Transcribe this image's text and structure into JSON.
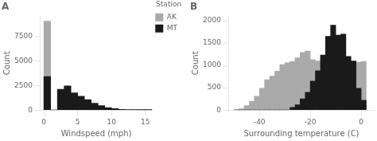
{
  "chart_data": [
    {
      "type": "histogram",
      "title": "A",
      "xlabel": "Windspeed (mph)",
      "ylabel": "Count",
      "bins": [
        0,
        1,
        2,
        3,
        4,
        5,
        6,
        7,
        8,
        9,
        10,
        11,
        12,
        13,
        14,
        15,
        16
      ],
      "series": [
        {
          "name": "AK",
          "color": "#aaaaaa",
          "values": [
            9000,
            0,
            0,
            0,
            0,
            0,
            0,
            0,
            0,
            0,
            0,
            0,
            0,
            0,
            0,
            0
          ]
        },
        {
          "name": "MT",
          "color": "#1a1a1a",
          "values": [
            3400,
            0,
            2100,
            2450,
            1750,
            1400,
            1050,
            700,
            450,
            250,
            150,
            80,
            50,
            30,
            10,
            5
          ]
        }
      ],
      "xlim": [
        -0.5,
        16
      ],
      "ylim": [
        0,
        9500
      ],
      "xticks": [
        0,
        5,
        10,
        15
      ],
      "yticks": [
        0,
        2500,
        5000,
        7500
      ],
      "grid": false,
      "legend": "upper right",
      "legend_title": "Station"
    },
    {
      "type": "histogram",
      "title": "B",
      "xlabel": "Surrounding temperature (C)",
      "ylabel": "Count",
      "bins": [
        -50,
        -48,
        -46,
        -44,
        -42,
        -40,
        -38,
        -36,
        -34,
        -32,
        -30,
        -28,
        -26,
        -24,
        -22,
        -20,
        -18,
        -16,
        -14,
        -12,
        -10,
        -8,
        -6,
        -4,
        -2,
        0,
        2
      ],
      "series": [
        {
          "color": "#aaaaaa",
          "values": [
            10,
            30,
            100,
            200,
            310,
            490,
            680,
            760,
            870,
            1020,
            1060,
            1090,
            1170,
            1290,
            1320,
            1130,
            1100,
            1070,
            1020,
            960,
            960,
            980,
            990,
            1040,
            1070,
            1090
          ]
        },
        {
          "color": "#1a1a1a",
          "values": [
            0,
            0,
            0,
            0,
            0,
            0,
            0,
            0,
            0,
            0,
            0,
            60,
            120,
            250,
            400,
            650,
            880,
            1230,
            1650,
            1900,
            1680,
            1700,
            1200,
            1100,
            490,
            220
          ]
        }
      ],
      "xlim": [
        -52,
        5
      ],
      "ylim": [
        0,
        2100
      ],
      "xticks": [
        -40,
        -20,
        0
      ],
      "yticks": [
        0,
        500,
        1000,
        1500,
        2000
      ],
      "grid": false
    }
  ]
}
